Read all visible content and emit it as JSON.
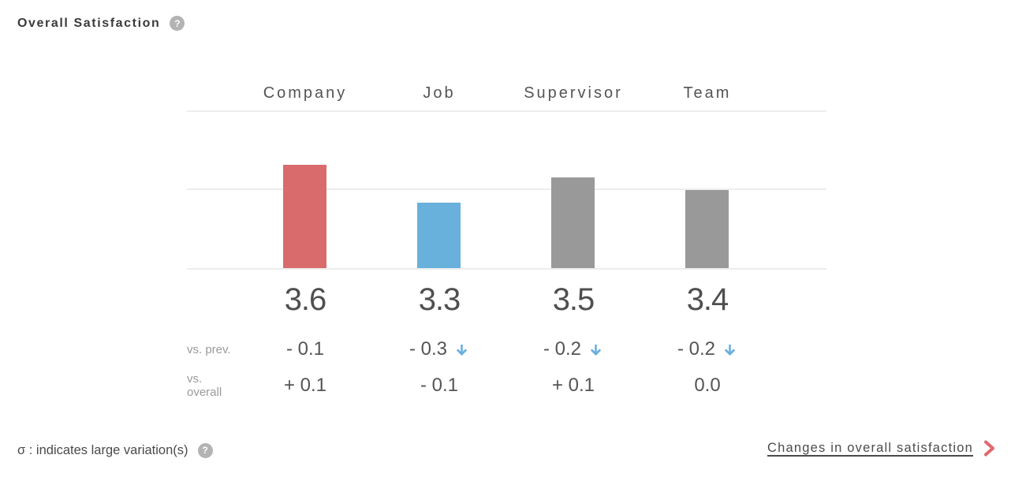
{
  "title": {
    "text": "Overall Satisfaction"
  },
  "icons": {
    "help_glyph": "?"
  },
  "chart_data": {
    "type": "bar",
    "title": "Overall Satisfaction",
    "categories": [
      "Company",
      "Job",
      "Supervisor",
      "Team"
    ],
    "values": [
      3.6,
      3.3,
      3.5,
      3.4
    ],
    "value_labels": [
      "3.6",
      "3.3",
      "3.5",
      "3.4"
    ],
    "bar_colors": [
      "#d96b6d",
      "#68b1dd",
      "#999999",
      "#999999"
    ],
    "ylim": [
      2.78,
      4.04
    ],
    "gridline_count": 3,
    "grid": "horizontal-only",
    "legend": "none",
    "arrow_color": "#68aede",
    "rows": [
      {
        "label": "vs. prev.",
        "cells": [
          {
            "text": "- 0.1",
            "arrow_down": false
          },
          {
            "text": "- 0.3",
            "arrow_down": true
          },
          {
            "text": "- 0.2",
            "arrow_down": true
          },
          {
            "text": "- 0.2",
            "arrow_down": true
          }
        ]
      },
      {
        "label": "vs. overall",
        "cells": [
          {
            "text": "+ 0.1",
            "arrow_down": false
          },
          {
            "text": "- 0.1",
            "arrow_down": false
          },
          {
            "text": "+ 0.1",
            "arrow_down": false
          },
          {
            "text": "0.0",
            "arrow_down": false
          }
        ]
      }
    ]
  },
  "footer": {
    "note": "σ : indicates large variation(s)",
    "link": "Changes in overall satisfaction",
    "chevron_color": "#e0696e"
  }
}
